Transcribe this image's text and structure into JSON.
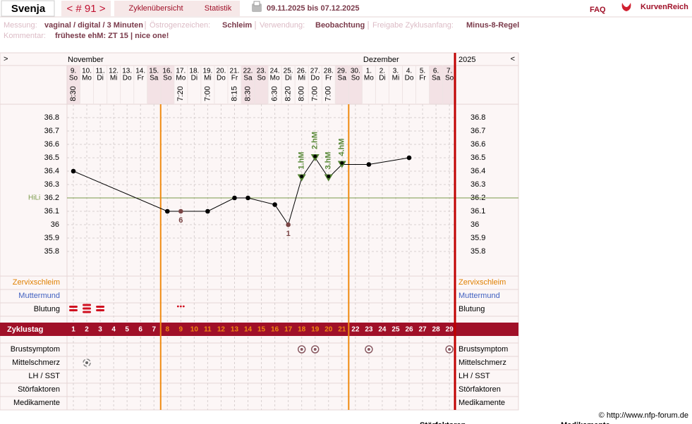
{
  "header": {
    "user": "Svenja",
    "cycle_nav": "< # 91 >",
    "tabs": [
      "Zyklenübersicht",
      "Statistik"
    ],
    "date_range": "09.11.2025 bis 07.12.2025",
    "faq": "FAQ",
    "brand": "KurvenReich"
  },
  "info": {
    "fields": [
      {
        "label": "Messung:",
        "value": "vaginal / digital / 3 Minuten"
      },
      {
        "label": "Östrogenzeichen:",
        "value": "Schleim"
      },
      {
        "label": "Verwendung:",
        "value": "Beobachtung"
      },
      {
        "label": "Freigabe Zyklusanfang:",
        "value": "Minus-8-Regel"
      }
    ],
    "comment_label": "Kommentar:",
    "comment": "früheste ehM: ZT 15 | nice one!"
  },
  "chart_data": {
    "type": "line",
    "nav_prev": ">",
    "nav_next": "<",
    "year": "2025",
    "months": [
      {
        "name": "November",
        "days": [
          {
            "date": "9.",
            "weekday": "So",
            "time": "8:30",
            "shaded": true
          },
          {
            "date": "10.",
            "weekday": "Mo",
            "time": null,
            "shaded": false
          },
          {
            "date": "11.",
            "weekday": "Di",
            "time": null,
            "shaded": false
          },
          {
            "date": "12.",
            "weekday": "Mi",
            "time": null,
            "shaded": false
          },
          {
            "date": "13.",
            "weekday": "Do",
            "time": null,
            "shaded": false
          },
          {
            "date": "14.",
            "weekday": "Fr",
            "time": null,
            "shaded": false
          },
          {
            "date": "15.",
            "weekday": "Sa",
            "time": null,
            "shaded": true
          },
          {
            "date": "16.",
            "weekday": "So",
            "time": null,
            "shaded": true
          },
          {
            "date": "17.",
            "weekday": "Mo",
            "time": "7:20",
            "shaded": false
          },
          {
            "date": "18.",
            "weekday": "Di",
            "time": null,
            "shaded": false
          },
          {
            "date": "19.",
            "weekday": "Mi",
            "time": "7:00",
            "shaded": false
          },
          {
            "date": "20.",
            "weekday": "Do",
            "time": null,
            "shaded": false
          },
          {
            "date": "21.",
            "weekday": "Fr",
            "time": "8:15",
            "shaded": false
          },
          {
            "date": "22.",
            "weekday": "Sa",
            "time": "8:30",
            "shaded": true
          },
          {
            "date": "23.",
            "weekday": "So",
            "time": null,
            "shaded": true
          },
          {
            "date": "24.",
            "weekday": "Mo",
            "time": "6:30",
            "shaded": false
          },
          {
            "date": "25.",
            "weekday": "Di",
            "time": "8:20",
            "shaded": false
          },
          {
            "date": "26.",
            "weekday": "Mi",
            "time": "8:00",
            "shaded": false
          },
          {
            "date": "27.",
            "weekday": "Do",
            "time": "7:00",
            "shaded": false
          },
          {
            "date": "28.",
            "weekday": "Fr",
            "time": "7:00",
            "shaded": false
          },
          {
            "date": "29.",
            "weekday": "Sa",
            "time": null,
            "shaded": true
          },
          {
            "date": "30.",
            "weekday": "So",
            "time": null,
            "shaded": true
          }
        ]
      },
      {
        "name": "Dezember",
        "days": [
          {
            "date": "1.",
            "weekday": "Mo",
            "time": null,
            "shaded": false
          },
          {
            "date": "2.",
            "weekday": "Di",
            "time": null,
            "shaded": false
          },
          {
            "date": "3.",
            "weekday": "Mi",
            "time": null,
            "shaded": false
          },
          {
            "date": "4.",
            "weekday": "Do",
            "time": null,
            "shaded": false
          },
          {
            "date": "5.",
            "weekday": "Fr",
            "time": null,
            "shaded": false
          },
          {
            "date": "6.",
            "weekday": "Sa",
            "time": null,
            "shaded": true
          },
          {
            "date": "7.",
            "weekday": "So",
            "time": null,
            "shaded": true
          }
        ]
      }
    ],
    "cycle_label": "Zyklustag",
    "cycle_days": [
      1,
      2,
      3,
      4,
      5,
      6,
      7,
      8,
      9,
      10,
      11,
      12,
      13,
      14,
      15,
      16,
      17,
      18,
      19,
      20,
      21,
      22,
      23,
      24,
      25,
      26,
      27,
      28,
      29
    ],
    "fertile_window": [
      8,
      21
    ],
    "fertile_color": "#f08a10",
    "x": [
      1,
      8,
      9,
      11,
      13,
      14,
      16,
      17,
      18,
      19,
      20,
      21,
      23,
      26
    ],
    "values": [
      36.4,
      36.1,
      36.1,
      36.1,
      36.2,
      36.2,
      36.15,
      36.0,
      36.35,
      36.5,
      36.35,
      36.45,
      36.45,
      36.5
    ],
    "point_styles": [
      "dot",
      "dot",
      "excluded",
      "dot",
      "dot",
      "dot",
      "dot",
      "excluded",
      "triangle",
      "triangle",
      "triangle",
      "triangle",
      "dot",
      "dot"
    ],
    "colors": {
      "dot": "#000000",
      "excluded": "#7a4545",
      "triangle": "#4f7f2f"
    },
    "annotations": [
      {
        "point": 2,
        "text": "6",
        "position": "below",
        "color": "#7a4545"
      },
      {
        "point": 7,
        "text": "1",
        "position": "below",
        "color": "#7a4545"
      },
      {
        "point": 8,
        "text": "1.hM",
        "position": "above",
        "color": "#5a8a3a"
      },
      {
        "point": 9,
        "text": "2.hM",
        "position": "above",
        "color": "#5a8a3a"
      },
      {
        "point": 10,
        "text": "3.hM",
        "position": "above",
        "color": "#5a8a3a"
      },
      {
        "point": 11,
        "text": "4.hM",
        "position": "above",
        "color": "#5a8a3a"
      }
    ],
    "ylim": [
      35.8,
      36.8
    ],
    "yticks": [
      35.8,
      35.9,
      36,
      36.1,
      36.2,
      36.3,
      36.4,
      36.5,
      36.6,
      36.7,
      36.8
    ],
    "grid": true,
    "hili": {
      "label": "HiLi",
      "value": 36.2,
      "color": "#7a9a4a"
    },
    "rows_top": [
      {
        "label": "Zervixschleim",
        "color": "#e08000"
      },
      {
        "label": "Muttermund",
        "color": "#4060c0"
      },
      {
        "label": "Blutung",
        "color": "#000000"
      }
    ],
    "rows_bottom": [
      "Brustsymptom",
      "Mittelschmerz",
      "LH / SST",
      "Störfaktoren",
      "Medikamente"
    ],
    "bleeding": {
      "cycle_days": [
        1,
        2,
        3,
        9
      ],
      "bars": [
        2,
        3,
        2,
        0
      ],
      "color": "#d01020"
    },
    "breast_symptom_days": [
      18,
      19,
      23,
      29
    ],
    "mittelschmerz_days": [
      2
    ]
  },
  "footer": {
    "copyright": "© http://www.nfp-forum.de",
    "legend_titles": [
      "Störfaktoren",
      "Medikamente"
    ]
  }
}
